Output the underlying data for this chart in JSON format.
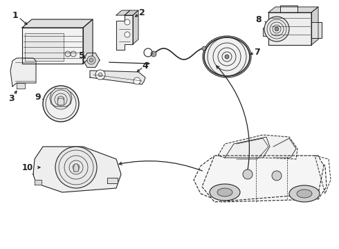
{
  "bg_color": "#ffffff",
  "line_color": "#222222",
  "figsize": [
    4.9,
    3.6
  ],
  "dpi": 100,
  "xlim": [
    0,
    490
  ],
  "ylim": [
    0,
    360
  ]
}
